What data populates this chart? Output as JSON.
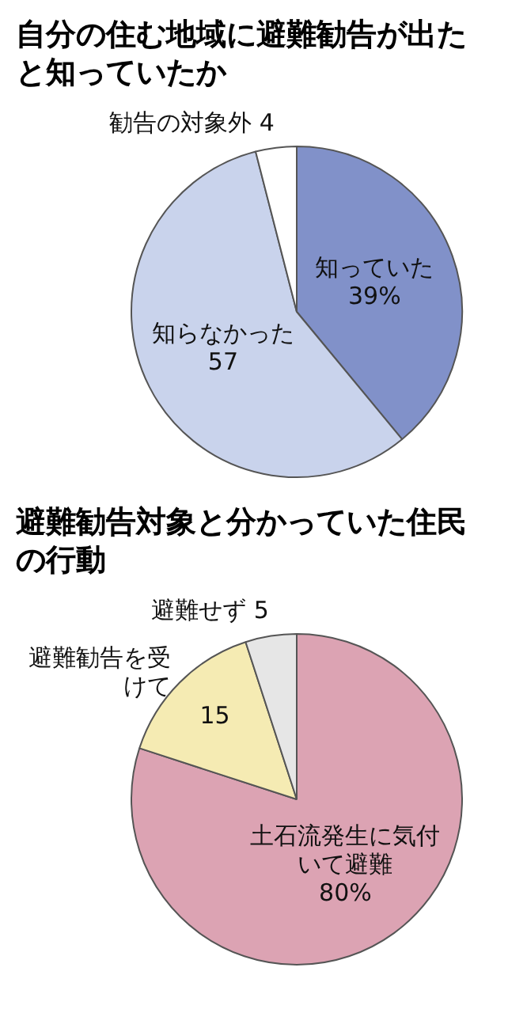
{
  "chart_data": [
    {
      "type": "pie",
      "title": "自分の住む地域に避難勧告が出たと知っていたか",
      "categories": [
        "知っていた",
        "知らなかった",
        "勧告の対象外"
      ],
      "values": [
        39,
        57,
        4
      ],
      "colors": [
        "#8191c9",
        "#c9d3ec",
        "#ffffff"
      ],
      "value_labels": [
        "39%",
        "57",
        "4"
      ]
    },
    {
      "type": "pie",
      "title": "避難勧告対象と分かっていた住民の行動",
      "categories": [
        "土石流発生に気付いて避難",
        "避難勧告を受けて",
        "避難せず"
      ],
      "values": [
        80,
        15,
        5
      ],
      "colors": [
        "#dca3b3",
        "#f5ebb3",
        "#e6e6e6"
      ],
      "value_labels": [
        "80%",
        "15",
        "5"
      ]
    }
  ]
}
